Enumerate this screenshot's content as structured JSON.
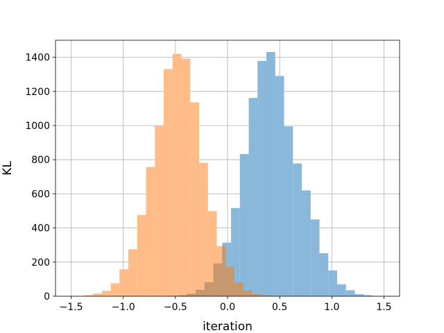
{
  "chart_data": {
    "type": "histogram",
    "xlabel": "iteration",
    "ylabel": "KL",
    "xlim": [
      -1.65,
      1.65
    ],
    "ylim": [
      0,
      1500
    ],
    "xticks": [
      -1.5,
      -1.0,
      -0.5,
      0.0,
      0.5,
      1.0,
      1.5
    ],
    "xtick_labels": [
      "−1.5",
      "−1.0",
      "−0.5",
      "0.0",
      "0.5",
      "1.0",
      "1.5"
    ],
    "yticks": [
      0,
      200,
      400,
      600,
      800,
      1000,
      1200,
      1400
    ],
    "ytick_labels": [
      "0",
      "200",
      "400",
      "600",
      "800",
      "1000",
      "1200",
      "1400"
    ],
    "grid": true,
    "series": [
      {
        "color": "#ffbb88",
        "bin_start": -1.46,
        "bin_width": 0.0848,
        "values": [
          2,
          6,
          16,
          32,
          76,
          158,
          275,
          476,
          757,
          1001,
          1331,
          1420,
          1392,
          1136,
          782,
          499,
          294,
          173,
          80,
          33,
          14,
          6
        ]
      },
      {
        "color": "#8ab8da",
        "bin_start": -0.56,
        "bin_width": 0.0848,
        "values": [
          2,
          6,
          15,
          38,
          82,
          192,
          314,
          517,
          833,
          1162,
          1379,
          1431,
          1291,
          995,
          778,
          620,
          450,
          252,
          151,
          70,
          35,
          12,
          6,
          1
        ]
      }
    ]
  }
}
